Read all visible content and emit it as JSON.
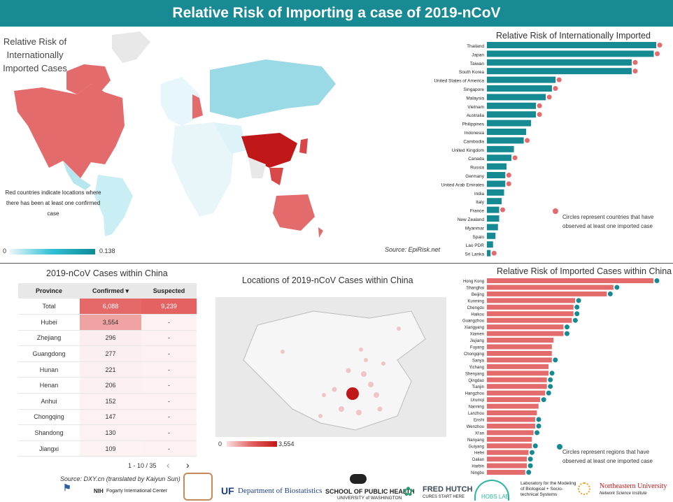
{
  "header": {
    "title": "Relative Risk of Importing a case of 2019-nCoV"
  },
  "world_map": {
    "title": "Relative Risk of Internationally Imported Cases",
    "note": "Red countries indicate locations where there has been at least one confirmed case",
    "legend_min": "0",
    "legend_max": "0.138",
    "source": "Source: EpiRisk.net"
  },
  "colors": {
    "header": "#178a94",
    "teal": "#168a93",
    "salmon": "#e36b6b",
    "dark_red": "#c21616"
  },
  "chart_data": [
    {
      "type": "bar",
      "title": "Relative Risk of Internationally Imported Cases",
      "categories": [
        "Thailand",
        "Japan",
        "Taiwan",
        "South Korea",
        "United States of America",
        "Singapore",
        "Malaysia",
        "Vietnam",
        "Australia",
        "Philippines",
        "Indonesia",
        "Cambodia",
        "United Kingdom",
        "Canada",
        "Russia",
        "Germany",
        "United Arab Emirates",
        "India",
        "Italy",
        "France",
        "New Zealand",
        "Myanmar",
        "Spain",
        "Lao PDR",
        "Sri Lanka"
      ],
      "values": [
        0.138,
        0.136,
        0.118,
        0.118,
        0.056,
        0.053,
        0.048,
        0.04,
        0.04,
        0.036,
        0.032,
        0.03,
        0.022,
        0.02,
        0.016,
        0.015,
        0.015,
        0.014,
        0.012,
        0.01,
        0.01,
        0.009,
        0.007,
        0.005,
        0.003
      ],
      "confirmed_case_marker": [
        true,
        true,
        true,
        true,
        true,
        true,
        true,
        true,
        true,
        false,
        false,
        true,
        false,
        true,
        false,
        true,
        true,
        false,
        false,
        true,
        false,
        false,
        false,
        false,
        true
      ],
      "note": "Circles represent countries that have observed at least one imported case",
      "orientation": "horizontal"
    },
    {
      "type": "bar",
      "title": "Relative Risk of Imported Cases within China",
      "categories": [
        "Hong Kong",
        "Shanghai",
        "Beijing",
        "Kunming",
        "Chengdu",
        "Haikou",
        "Guangzhou",
        "Xiangyang",
        "Xiamen",
        "Jiujiang",
        "Fuyang",
        "Chongqing",
        "Sanya",
        "Yichang",
        "Shenyang",
        "Qingdao",
        "Tianjin",
        "Hangzhou",
        "Urumqi",
        "Nanning",
        "Lanzhou",
        "Enshi",
        "Wenzhou",
        "Xi'an",
        "Nanyang",
        "Guiyang",
        "Hefei",
        "Dalian",
        "Harbin",
        "Ningbo"
      ],
      "values": [
        1.0,
        0.76,
        0.72,
        0.53,
        0.52,
        0.52,
        0.51,
        0.46,
        0.46,
        0.4,
        0.39,
        0.39,
        0.39,
        0.37,
        0.37,
        0.36,
        0.36,
        0.35,
        0.32,
        0.31,
        0.3,
        0.29,
        0.29,
        0.28,
        0.27,
        0.27,
        0.25,
        0.24,
        0.24,
        0.23
      ],
      "confirmed_case_marker": [
        true,
        true,
        true,
        true,
        true,
        true,
        true,
        true,
        true,
        false,
        false,
        false,
        true,
        false,
        true,
        true,
        true,
        true,
        true,
        false,
        false,
        true,
        true,
        true,
        false,
        true,
        true,
        true,
        true,
        true
      ],
      "note": "Circles represent regions that have observed at least one imported case",
      "orientation": "horizontal"
    },
    {
      "type": "table",
      "title": "2019-nCoV Cases within China",
      "columns": [
        "Province",
        "Confirmed",
        "Suspected"
      ],
      "sort_column": "Confirmed",
      "rows": [
        [
          "Total",
          "6,088",
          "9,239"
        ],
        [
          "Hubei",
          "3,554",
          "-"
        ],
        [
          "Zhejiang",
          "296",
          "-"
        ],
        [
          "Guangdong",
          "277",
          "-"
        ],
        [
          "Hunan",
          "221",
          "-"
        ],
        [
          "Henan",
          "206",
          "-"
        ],
        [
          "Anhui",
          "152",
          "-"
        ],
        [
          "Chongqing",
          "147",
          "-"
        ],
        [
          "Shandong",
          "130",
          "-"
        ],
        [
          "Jiangxi",
          "109",
          "-"
        ]
      ]
    }
  ],
  "china_table": {
    "title": "2019-nCoV Cases within China",
    "sort_indicator": "▾",
    "pagination": "1 - 10 / 35",
    "prev_icon": "‹",
    "next_icon": "›",
    "source": "Source: DXY.cn (translated by Kaiyun Sun)"
  },
  "china_map": {
    "title": "Locations of 2019-nCoV Cases within China",
    "legend_min": "0",
    "legend_max": "3,554"
  },
  "logos": {
    "fic_label": "Fogarty International Center",
    "nih_label": "NIH",
    "uf_label": "UF",
    "uf_dept": "Department of Biostatistics",
    "uw_label": "SCHOOL OF PUBLIC HEALTH",
    "uw_sub": "UNIVERSITY of WASHINGTON",
    "fred_label": "FRED HUTCH",
    "fred_sub": "CURES START HERE",
    "hobs_label": "HOBS LAB",
    "mobs_label": "Laboratory for the Modeling of Biological + Socio-technical Systems",
    "neu_label": "Northeastern University",
    "neu_sub": "Network Science Institute"
  }
}
